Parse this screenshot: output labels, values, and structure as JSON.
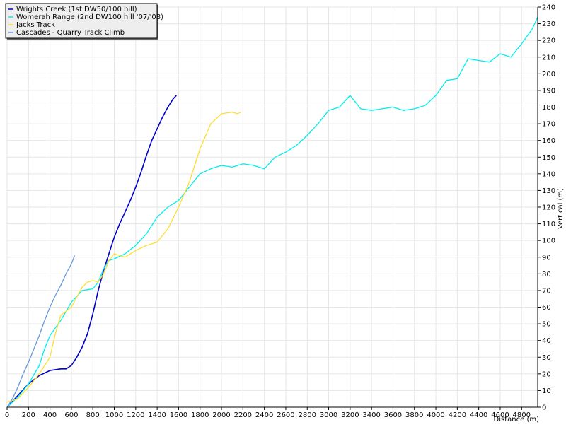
{
  "chart_data": {
    "type": "line",
    "xlabel": "Distance (m)",
    "ylabel": "Vertical (m)",
    "xlim": [
      0,
      4950
    ],
    "ylim": [
      0,
      240
    ],
    "x_ticks": [
      0,
      200,
      400,
      600,
      800,
      1000,
      1200,
      1400,
      1600,
      1800,
      2000,
      2200,
      2400,
      2600,
      2800,
      3000,
      3200,
      3400,
      3600,
      3800,
      4000,
      4200,
      4400,
      4600,
      4800
    ],
    "y_ticks": [
      0,
      10,
      20,
      30,
      40,
      50,
      60,
      70,
      80,
      90,
      100,
      110,
      120,
      130,
      140,
      150,
      160,
      170,
      180,
      190,
      200,
      210,
      220,
      230,
      240
    ],
    "grid": true,
    "legend_position": "top-left",
    "series": [
      {
        "name": "Wrights Creek (1st DW50/100 hill)",
        "color": "#0000cc",
        "x": [
          0,
          100,
          200,
          300,
          400,
          500,
          550,
          600,
          650,
          700,
          750,
          800,
          850,
          900,
          950,
          1000,
          1050,
          1100,
          1150,
          1200,
          1250,
          1300,
          1350,
          1400,
          1450,
          1500,
          1550,
          1580
        ],
        "y": [
          0,
          7,
          14,
          19,
          22,
          23,
          23,
          25,
          30,
          36,
          44,
          56,
          70,
          82,
          92,
          102,
          110,
          117,
          124,
          132,
          141,
          151,
          160,
          167,
          174,
          180,
          185,
          187
        ]
      },
      {
        "name": "Womerah Range (2nd DW100 hill '07/'08)",
        "color": "#00eeee",
        "x": [
          0,
          100,
          200,
          300,
          350,
          400,
          500,
          600,
          700,
          800,
          850,
          900,
          950,
          1000,
          1100,
          1200,
          1300,
          1400,
          1500,
          1600,
          1700,
          1800,
          1900,
          2000,
          2100,
          2200,
          2300,
          2400,
          2500,
          2600,
          2700,
          2800,
          2900,
          3000,
          3100,
          3200,
          3300,
          3400,
          3500,
          3600,
          3700,
          3800,
          3900,
          4000,
          4100,
          4200,
          4300,
          4400,
          4500,
          4600,
          4700,
          4800,
          4900,
          4950
        ],
        "y": [
          0,
          6,
          14,
          25,
          35,
          43,
          52,
          63,
          70,
          71,
          75,
          83,
          88,
          89,
          92,
          97,
          104,
          114,
          120,
          124,
          132,
          140,
          143,
          145,
          144,
          146,
          145,
          143,
          150,
          153,
          157,
          163,
          170,
          178,
          180,
          187,
          179,
          178,
          179,
          180,
          178,
          179,
          181,
          187,
          196,
          197,
          209,
          208,
          207,
          212,
          210,
          218,
          227,
          234
        ]
      },
      {
        "name": "Jacks Track",
        "color": "#ffdd33",
        "x": [
          0,
          100,
          200,
          300,
          400,
          450,
          500,
          600,
          700,
          750,
          800,
          850,
          900,
          950,
          1000,
          1100,
          1200,
          1300,
          1400,
          1500,
          1600,
          1700,
          1800,
          1900,
          2000,
          2100,
          2150,
          2180
        ],
        "y": [
          3,
          5,
          12,
          20,
          30,
          44,
          55,
          60,
          72,
          75,
          76,
          75,
          80,
          88,
          92,
          90,
          94,
          97,
          99,
          107,
          120,
          135,
          155,
          170,
          176,
          177,
          176,
          177
        ]
      },
      {
        "name": "Cascades - Quarry Track Climb",
        "color": "#6699dd",
        "x": [
          0,
          50,
          100,
          150,
          200,
          250,
          300,
          350,
          400,
          450,
          500,
          550,
          600,
          630
        ],
        "y": [
          0,
          5,
          12,
          20,
          27,
          35,
          43,
          52,
          60,
          67,
          73,
          80,
          86,
          91
        ]
      }
    ]
  }
}
